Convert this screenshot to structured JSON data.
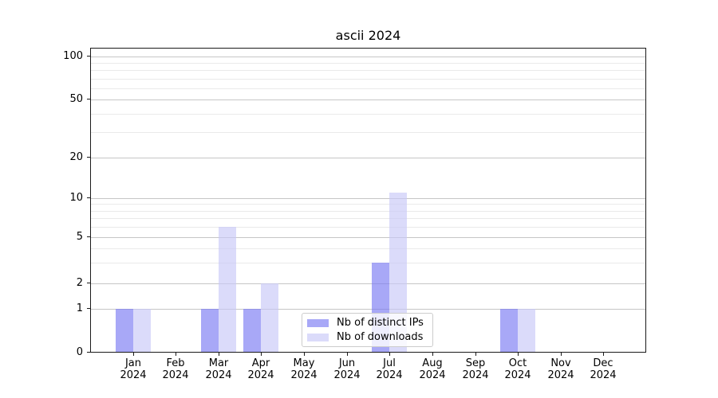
{
  "title": "ascii 2024",
  "chart_data": {
    "type": "bar",
    "title": "ascii 2024",
    "categories": [
      "Jan",
      "Feb",
      "Mar",
      "Apr",
      "May",
      "Jun",
      "Jul",
      "Aug",
      "Sep",
      "Oct",
      "Nov",
      "Dec"
    ],
    "x_tick_year": "2024",
    "series": [
      {
        "name": "Nb of distinct IPs",
        "color": "rgba(122,122,243,0.65)",
        "values": [
          1,
          0,
          1,
          1,
          0,
          0,
          3,
          0,
          0,
          1,
          0,
          0
        ]
      },
      {
        "name": "Nb of downloads",
        "color": "rgba(200,200,247,0.65)",
        "values": [
          1,
          0,
          6,
          2,
          0,
          0,
          11,
          0,
          0,
          1,
          0,
          0
        ]
      }
    ],
    "y_axis": {
      "ticks": [
        0,
        1,
        2,
        5,
        10,
        20,
        50,
        100
      ],
      "minor_ticks": [
        3,
        4,
        6,
        7,
        8,
        9,
        30,
        40,
        60,
        70,
        80,
        90
      ],
      "scale": "log-like above 1, zero baseline",
      "range": [
        0,
        110
      ]
    },
    "legend": {
      "position": "lower center",
      "entries": [
        "Nb of distinct IPs",
        "Nb of downloads"
      ]
    },
    "grid": true
  },
  "colors": {
    "background": "#ffffff",
    "axis": "#1a1a1a",
    "grid_major": "#c6c6c6",
    "grid_minor": "#eaeaea",
    "text": "#000000",
    "legend_border": "#cccccc",
    "legend_bg": "rgba(255,255,255,0.8)"
  }
}
